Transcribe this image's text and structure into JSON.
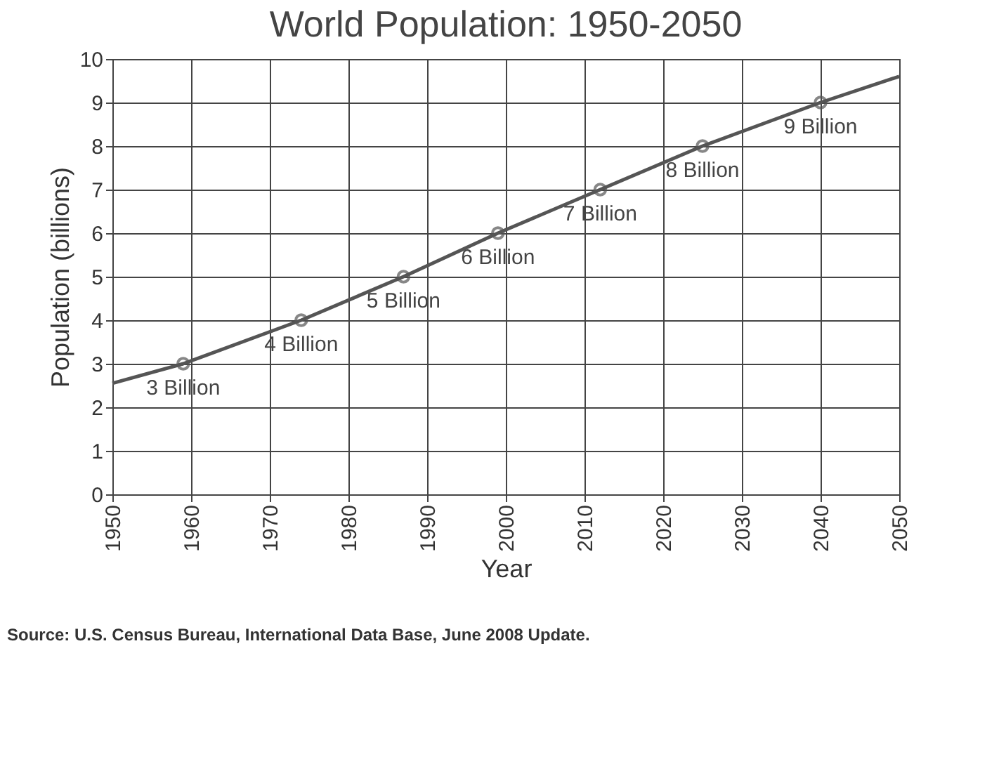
{
  "chart_data": {
    "type": "line",
    "title": "World Population: 1950-2050",
    "xlabel": "Year",
    "ylabel": "Population (billions)",
    "xlim": [
      1950,
      2050
    ],
    "xticks": [
      1950,
      1960,
      1970,
      1980,
      1990,
      2000,
      2010,
      2020,
      2030,
      2040,
      2050
    ],
    "ylim": [
      0,
      10
    ],
    "yticks": [
      0,
      1,
      2,
      3,
      4,
      5,
      6,
      7,
      8,
      9,
      10
    ],
    "grid": true,
    "legend": false,
    "series": [
      {
        "type": "line",
        "color": "#555555",
        "marker": "none",
        "line_style": "solid",
        "x": [
          1950,
          1959,
          1974,
          1987,
          1999,
          2012,
          2025,
          2040,
          2050
        ],
        "values": [
          2.55,
          3,
          4,
          5,
          6,
          7,
          8,
          9,
          9.6
        ]
      },
      {
        "type": "scatter",
        "color": "#555555",
        "marker": "circle",
        "x": [
          1959,
          1974,
          1987,
          1999,
          2012,
          2025,
          2040
        ],
        "values": [
          3,
          4,
          5,
          6,
          7,
          8,
          9
        ]
      }
    ],
    "annotations": [
      {
        "text": "3 Billion",
        "x": 1959,
        "y": 3
      },
      {
        "text": "4 Billion",
        "x": 1974,
        "y": 4
      },
      {
        "text": "5 Billion",
        "x": 1987,
        "y": 5
      },
      {
        "text": "6 Billion",
        "x": 1999,
        "y": 6
      },
      {
        "text": "7 Billion",
        "x": 2012,
        "y": 7
      },
      {
        "text": "8 Billion",
        "x": 2025,
        "y": 8
      },
      {
        "text": "9 Billion",
        "x": 2040,
        "y": 9
      },
      "Source: U.S. Census Bureau, International Data Base, June 2008 Update."
    ]
  }
}
